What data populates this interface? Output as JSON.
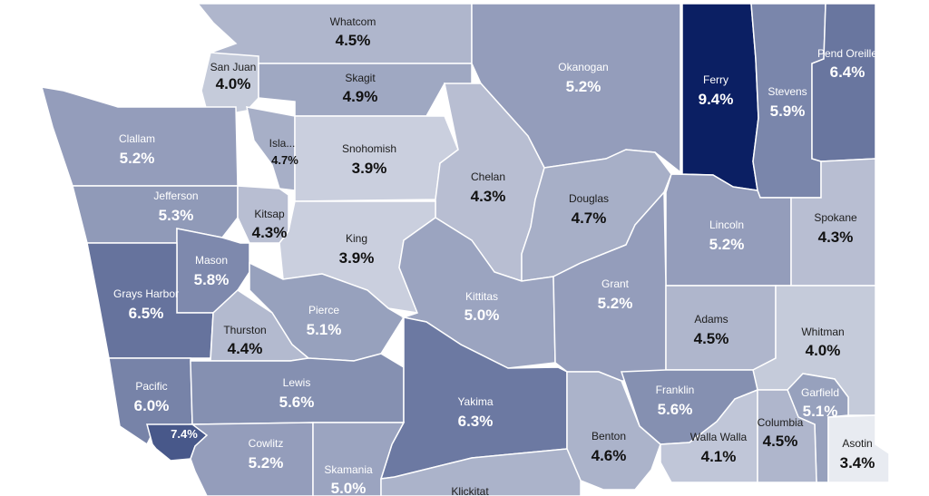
{
  "map": {
    "color_scale": {
      "low": "#e8ebf1",
      "high": "#0b1f63",
      "min": 3.4,
      "max": 9.4
    },
    "counties": [
      {
        "name": "Whatcom",
        "value": "4.5%"
      },
      {
        "name": "San Juan",
        "value": "4.0%"
      },
      {
        "name": "Skagit",
        "value": "4.9%"
      },
      {
        "name": "Okanogan",
        "value": "5.2%"
      },
      {
        "name": "Ferry",
        "value": "9.4%"
      },
      {
        "name": "Stevens",
        "value": "5.9%"
      },
      {
        "name": "Pend Oreille",
        "value": "6.4%"
      },
      {
        "name": "Clallam",
        "value": "5.2%"
      },
      {
        "name": "Isla...",
        "value": "4.7%"
      },
      {
        "name": "Snohomish",
        "value": "3.9%"
      },
      {
        "name": "Chelan",
        "value": "4.3%"
      },
      {
        "name": "Douglas",
        "value": "4.7%"
      },
      {
        "name": "Jefferson",
        "value": "5.3%"
      },
      {
        "name": "Kitsap",
        "value": "4.3%"
      },
      {
        "name": "King",
        "value": "3.9%"
      },
      {
        "name": "Lincoln",
        "value": "5.2%"
      },
      {
        "name": "Spokane",
        "value": "4.3%"
      },
      {
        "name": "Mason",
        "value": "5.8%"
      },
      {
        "name": "Grays Harbor",
        "value": "6.5%"
      },
      {
        "name": "Pierce",
        "value": "5.1%"
      },
      {
        "name": "Thurston",
        "value": "4.4%"
      },
      {
        "name": "Kittitas",
        "value": "5.0%"
      },
      {
        "name": "Grant",
        "value": "5.2%"
      },
      {
        "name": "Adams",
        "value": "4.5%"
      },
      {
        "name": "Whitman",
        "value": "4.0%"
      },
      {
        "name": "Pacific",
        "value": "6.0%"
      },
      {
        "name": "Lewis",
        "value": "5.6%"
      },
      {
        "name": "Yakima",
        "value": "6.3%"
      },
      {
        "name": "Franklin",
        "value": "5.6%"
      },
      {
        "name": "Garfield",
        "value": "5.1%"
      },
      {
        "name": "",
        "value": "7.4%"
      },
      {
        "name": "Cowlitz",
        "value": "5.2%"
      },
      {
        "name": "Benton",
        "value": "4.6%"
      },
      {
        "name": "Walla Walla",
        "value": "4.1%"
      },
      {
        "name": "Columbia",
        "value": "4.5%"
      },
      {
        "name": "Asotin",
        "value": "3.4%"
      },
      {
        "name": "Skamania",
        "value": "5.0%"
      },
      {
        "name": "Klickitat",
        "value": ""
      }
    ]
  }
}
